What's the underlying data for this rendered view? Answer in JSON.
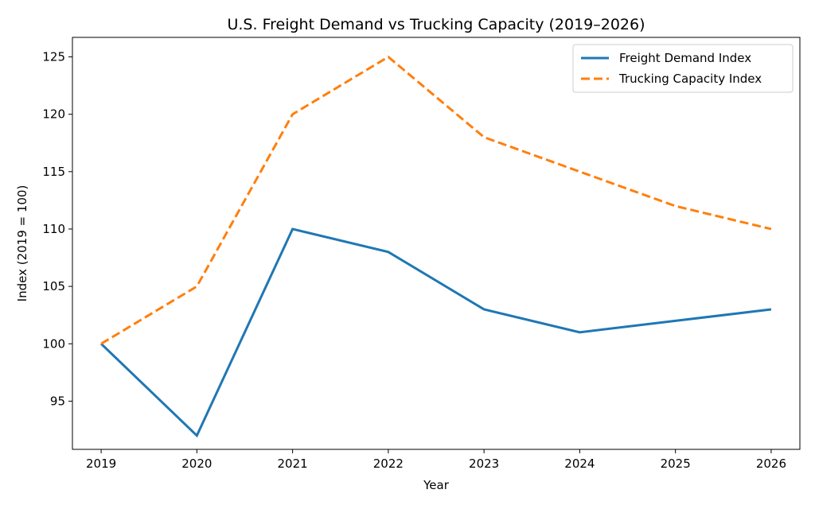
{
  "chart_data": {
    "type": "line",
    "title": "U.S. Freight Demand vs Trucking Capacity (2019–2026)",
    "xlabel": "Year",
    "ylabel": "Index (2019 = 100)",
    "x": [
      "2019",
      "2020",
      "2021",
      "2022",
      "2023",
      "2024",
      "2025",
      "2026"
    ],
    "xlim": [
      2018.7,
      2026.3
    ],
    "ylim": [
      90.8,
      126.7
    ],
    "yticks": [
      95,
      100,
      105,
      110,
      115,
      120,
      125
    ],
    "grid": false,
    "legend_position": "upper-right",
    "series": [
      {
        "name": "Freight Demand Index",
        "values": [
          100,
          92,
          110,
          108,
          103,
          101,
          102,
          103
        ],
        "color": "#1f77b4",
        "style": "solid"
      },
      {
        "name": "Trucking Capacity Index",
        "values": [
          100,
          105,
          120,
          125,
          118,
          115,
          112,
          110
        ],
        "color": "#ff7f0e",
        "style": "dashed"
      }
    ]
  }
}
